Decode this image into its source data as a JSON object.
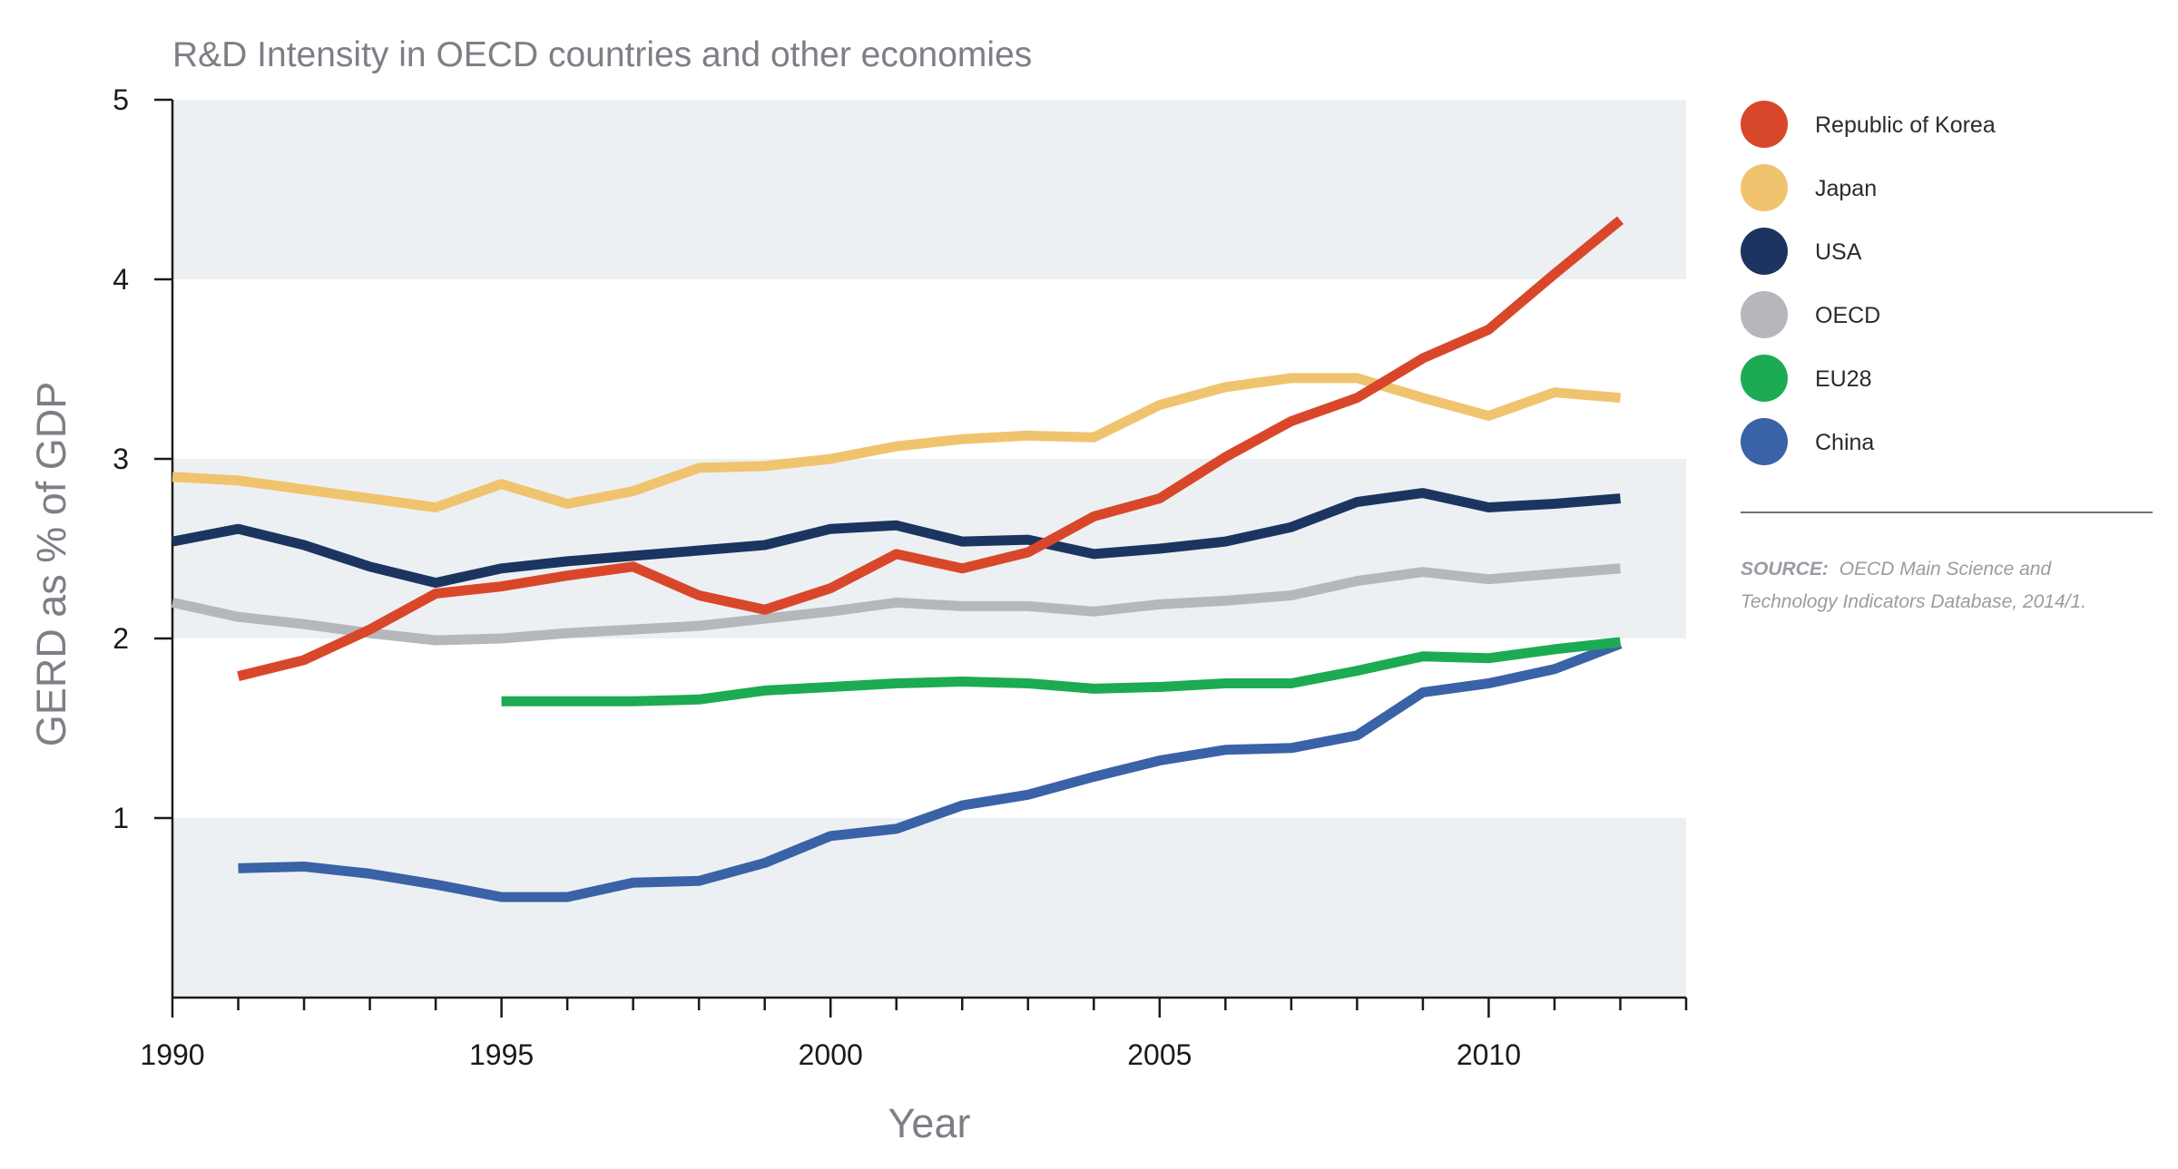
{
  "chart_data": {
    "type": "line",
    "title": "R&D Intensity in OECD countries and other economies",
    "xlabel": "Year",
    "ylabel": "GERD as % of GDP",
    "xlim": [
      1990,
      2013
    ],
    "ylim": [
      0,
      5
    ],
    "xticks": [
      1990,
      1995,
      2000,
      2005,
      2010
    ],
    "yticks": [
      1,
      2,
      3,
      4,
      5
    ],
    "grid": "alternating horizontal bands",
    "legend_position": "right",
    "series": [
      {
        "name": "Republic of Korea",
        "color": "#d9472b",
        "x": [
          1991,
          1992,
          1993,
          1994,
          1995,
          1996,
          1997,
          1998,
          1999,
          2000,
          2001,
          2002,
          2003,
          2004,
          2005,
          2006,
          2007,
          2008,
          2009,
          2010,
          2011,
          2012
        ],
        "y": [
          1.79,
          1.88,
          2.05,
          2.25,
          2.29,
          2.35,
          2.4,
          2.24,
          2.16,
          2.28,
          2.47,
          2.39,
          2.48,
          2.68,
          2.78,
          3.01,
          3.21,
          3.34,
          3.56,
          3.72,
          4.03,
          4.33
        ]
      },
      {
        "name": "Japan",
        "color": "#f0c46e",
        "x": [
          1990,
          1991,
          1992,
          1993,
          1994,
          1995,
          1996,
          1997,
          1998,
          1999,
          2000,
          2001,
          2002,
          2003,
          2004,
          2005,
          2006,
          2007,
          2008,
          2009,
          2010,
          2011,
          2012
        ],
        "y": [
          2.9,
          2.88,
          2.83,
          2.78,
          2.73,
          2.86,
          2.75,
          2.82,
          2.95,
          2.96,
          3.0,
          3.07,
          3.11,
          3.13,
          3.12,
          3.3,
          3.4,
          3.45,
          3.45,
          3.34,
          3.24,
          3.37,
          3.34
        ]
      },
      {
        "name": "USA",
        "color": "#1c3560",
        "x": [
          1990,
          1991,
          1992,
          1993,
          1994,
          1995,
          1996,
          1997,
          1998,
          1999,
          2000,
          2001,
          2002,
          2003,
          2004,
          2005,
          2006,
          2007,
          2008,
          2009,
          2010,
          2011,
          2012
        ],
        "y": [
          2.54,
          2.61,
          2.52,
          2.4,
          2.31,
          2.39,
          2.43,
          2.46,
          2.49,
          2.52,
          2.61,
          2.63,
          2.54,
          2.55,
          2.47,
          2.5,
          2.54,
          2.62,
          2.76,
          2.81,
          2.73,
          2.75,
          2.78
        ]
      },
      {
        "name": "OECD",
        "color": "#b5b7bc",
        "x": [
          1990,
          1991,
          1992,
          1993,
          1994,
          1995,
          1996,
          1997,
          1998,
          1999,
          2000,
          2001,
          2002,
          2003,
          2004,
          2005,
          2006,
          2007,
          2008,
          2009,
          2010,
          2011,
          2012
        ],
        "y": [
          2.2,
          2.12,
          2.08,
          2.03,
          1.99,
          2.0,
          2.03,
          2.05,
          2.07,
          2.11,
          2.15,
          2.2,
          2.18,
          2.18,
          2.15,
          2.19,
          2.21,
          2.24,
          2.32,
          2.37,
          2.33,
          2.36,
          2.39
        ]
      },
      {
        "name": "EU28",
        "color": "#1cab52",
        "x": [
          1995,
          1996,
          1997,
          1998,
          1999,
          2000,
          2001,
          2002,
          2003,
          2004,
          2005,
          2006,
          2007,
          2008,
          2009,
          2010,
          2011,
          2012
        ],
        "y": [
          1.65,
          1.65,
          1.65,
          1.66,
          1.71,
          1.73,
          1.75,
          1.76,
          1.75,
          1.72,
          1.73,
          1.75,
          1.75,
          1.82,
          1.9,
          1.89,
          1.94,
          1.98
        ]
      },
      {
        "name": "China",
        "color": "#3a62a6",
        "x": [
          1991,
          1992,
          1993,
          1994,
          1995,
          1996,
          1997,
          1998,
          1999,
          2000,
          2001,
          2002,
          2003,
          2004,
          2005,
          2006,
          2007,
          2008,
          2009,
          2010,
          2011,
          2012
        ],
        "y": [
          0.72,
          0.73,
          0.69,
          0.63,
          0.56,
          0.56,
          0.64,
          0.65,
          0.75,
          0.9,
          0.94,
          1.07,
          1.13,
          1.23,
          1.32,
          1.38,
          1.39,
          1.46,
          1.7,
          1.75,
          1.83,
          1.97
        ]
      }
    ]
  },
  "source": {
    "label": "SOURCE:",
    "text": "OECD Main Science and Technology Indicators Database, 2014/1.",
    "line1_rest": "OECD Main Science and",
    "line2": "Technology Indicators Database, 2014/1."
  }
}
